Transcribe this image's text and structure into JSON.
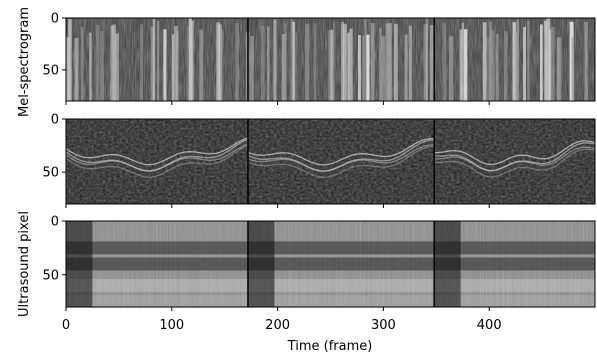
{
  "chart_data": [
    {
      "type": "heatmap",
      "colormap": "grayscale",
      "ylabel": "Mel-spectrogram",
      "yticks": [
        0,
        50
      ],
      "ylim": [
        80,
        0
      ],
      "xlim": [
        0,
        500
      ],
      "segment_boundaries": [
        0,
        172,
        348,
        500
      ],
      "xticks_shown": false
    },
    {
      "type": "heatmap",
      "colormap": "grayscale",
      "ylabel": "",
      "yticks": [
        0,
        50
      ],
      "ylim": [
        80,
        0
      ],
      "xlim": [
        0,
        500
      ],
      "segment_boundaries": [
        0,
        172,
        348,
        500
      ],
      "xticks_shown": false
    },
    {
      "type": "heatmap",
      "colormap": "grayscale",
      "ylabel": "Ultrasound pixel",
      "yticks": [
        0,
        50
      ],
      "ylim": [
        80,
        0
      ],
      "xlim": [
        0,
        500
      ],
      "segment_boundaries": [
        0,
        172,
        348,
        500
      ],
      "xticks": [
        0,
        100,
        200,
        300,
        400
      ],
      "xlabel": "Time (frame)"
    }
  ]
}
